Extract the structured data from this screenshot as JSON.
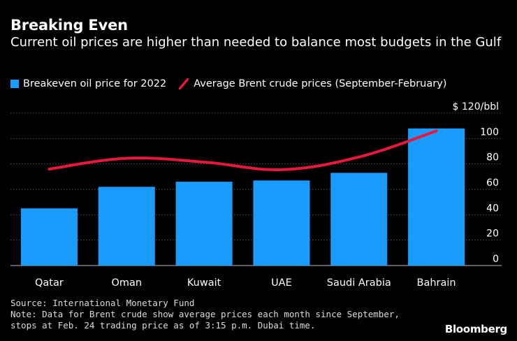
{
  "colors": {
    "background": "#000000",
    "bar": "#1a9cff",
    "line": "#e8173c",
    "grid": "#555555",
    "text": "#ffffff"
  },
  "header": {
    "title": "Breaking Even",
    "subtitle": "Current oil prices are higher than needed to balance most budgets in the Gulf"
  },
  "legend": {
    "bar_label": "Breakeven oil price for 2022",
    "line_label": "Average Brent crude prices (September-February)"
  },
  "footer": {
    "source": "Source: International Monetary Fund",
    "note_line1": "Note: Data for Brent crude show average prices each month since September,",
    "note_line2": "stops at Feb. 24 trading price as of 3:15 p.m. Dubai time.",
    "brand": "Bloomberg"
  },
  "chart_data": {
    "type": "bar",
    "title": "Breaking Even",
    "subtitle": "Current oil prices are higher than needed to balance most budgets in the Gulf",
    "categories": [
      "Qatar",
      "Oman",
      "Kuwait",
      "UAE",
      "Saudi Arabia",
      "Bahrain"
    ],
    "series": [
      {
        "name": "Breakeven oil price for 2022",
        "type": "bar",
        "values": [
          45,
          62,
          66,
          67,
          73,
          108
        ]
      },
      {
        "name": "Average Brent crude prices (September-February)",
        "type": "line",
        "values": [
          76,
          84.5,
          81.5,
          75.5,
          85.5,
          106
        ]
      }
    ],
    "ylim": [
      0,
      120
    ],
    "yticks": [
      0,
      20,
      40,
      60,
      80,
      100,
      120
    ],
    "ytick_labels": [
      "0",
      "20",
      "40",
      "60",
      "80",
      "100",
      "$ 120/bbl"
    ],
    "ylabel": "",
    "xlabel": "",
    "grid": true,
    "legend_position": "top-left"
  }
}
